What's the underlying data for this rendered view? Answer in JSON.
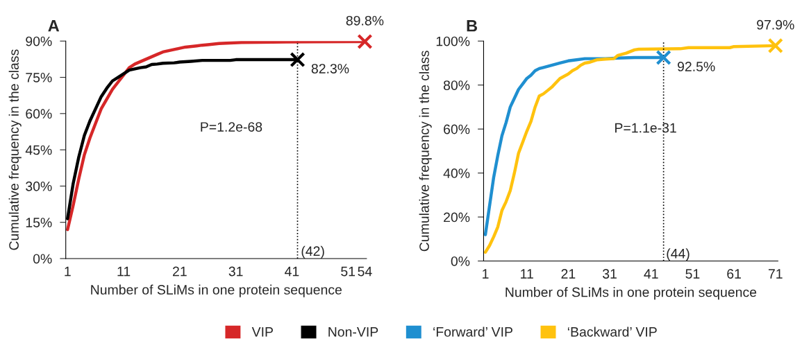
{
  "chart_data": [
    {
      "type": "line",
      "title": "A",
      "xlabel": "Number of SLiMs in one protein sequence",
      "ylabel": "Cumulative frequency in the class",
      "xlim": [
        0.68,
        54.3
      ],
      "xticks": [
        1,
        11,
        21,
        31,
        41,
        51,
        54
      ],
      "ylim": [
        0,
        90
      ],
      "yticks": [
        {
          "value": 0,
          "label": "0%"
        },
        {
          "value": 15,
          "label": "15%"
        },
        {
          "value": 30,
          "label": "30%"
        },
        {
          "value": 45,
          "label": "45%"
        },
        {
          "value": 60,
          "label": "60%"
        },
        {
          "value": 75,
          "label": "75%"
        },
        {
          "value": 90,
          "label": "90%"
        }
      ],
      "grid": false,
      "legend": "bottom",
      "series": [
        {
          "name": "VIP",
          "color": "#d62728",
          "x": [
            1,
            2,
            3,
            4,
            5,
            6,
            7,
            8,
            9,
            10,
            11,
            12,
            13,
            14,
            15,
            16,
            17,
            18,
            19,
            20,
            21,
            22,
            24,
            25,
            26,
            28,
            30,
            32,
            35,
            40,
            45,
            54
          ],
          "values": [
            12,
            22,
            33,
            43,
            50,
            56,
            62,
            66,
            70,
            73,
            76,
            79,
            80.5,
            81.5,
            82.5,
            83.5,
            84.5,
            85.5,
            86,
            86.5,
            87,
            87.5,
            88,
            88.3,
            88.5,
            89,
            89.2,
            89.4,
            89.5,
            89.6,
            89.7,
            89.8
          ]
        },
        {
          "name": "Non-VIP",
          "color": "#000000",
          "x": [
            1,
            2,
            3,
            4,
            5,
            6,
            7,
            8,
            9,
            10,
            11,
            12,
            13,
            14,
            15,
            16,
            17,
            18,
            20,
            21,
            23,
            25,
            30,
            31,
            42
          ],
          "values": [
            16.5,
            31,
            42,
            51,
            57,
            62,
            67,
            70.5,
            73.5,
            75,
            76.5,
            78,
            78.5,
            79,
            79.3,
            80.3,
            80.5,
            80.8,
            81,
            81.3,
            81.6,
            82,
            82,
            82.3,
            82.3
          ]
        },
        {
          "type": "scatter",
          "marker": "cross",
          "color": "#d62728",
          "x": [
            54
          ],
          "values": [
            89.8
          ]
        },
        {
          "type": "scatter",
          "marker": "cross",
          "color": "#000000",
          "x": [
            42
          ],
          "values": [
            82.3
          ]
        }
      ],
      "ref_lines": [
        {
          "axis": "x",
          "value": 42,
          "label": "(42)",
          "color": "#000000",
          "line_style": "dotted"
        }
      ],
      "annotations": [
        {
          "text": "89.8%",
          "x": 54,
          "y": 89.8
        },
        {
          "text": "82.3%",
          "x": 42,
          "y": 82.3
        },
        "P=1.2e-68"
      ]
    },
    {
      "type": "line",
      "title": "B",
      "xlabel": "Number of SLiMs in one protein sequence",
      "ylabel": "Cumulative frequency in the class",
      "xlim": [
        0.57,
        71.6
      ],
      "xticks": [
        1,
        11,
        21,
        31,
        41,
        51,
        61,
        71
      ],
      "ylim": [
        0,
        100
      ],
      "yticks": [
        {
          "value": 0,
          "label": "0%"
        },
        {
          "value": 20,
          "label": "20%"
        },
        {
          "value": 40,
          "label": "40%"
        },
        {
          "value": 60,
          "label": "60%"
        },
        {
          "value": 80,
          "label": "80%"
        },
        {
          "value": 100,
          "label": "100%"
        }
      ],
      "grid": false,
      "legend": "bottom",
      "series": [
        {
          "name": "‘Forward’ VIP",
          "color": "#1f8fd0",
          "x": [
            1,
            2,
            3,
            4,
            5,
            6,
            7,
            8,
            9,
            10,
            11,
            12,
            13,
            14,
            15,
            17,
            19,
            21,
            23,
            25,
            30,
            33,
            37,
            44
          ],
          "values": [
            12,
            25,
            38,
            48,
            57,
            63,
            70,
            74,
            78,
            80.5,
            83,
            84.5,
            86.5,
            87.5,
            88,
            89,
            90,
            91,
            91.5,
            92,
            92,
            92.3,
            92.5,
            92.5
          ]
        },
        {
          "name": "‘Backward’ VIP",
          "color": "#ffc20e",
          "x": [
            1,
            2,
            3,
            4,
            5,
            6,
            7,
            8,
            9,
            10,
            11,
            12,
            13,
            14,
            15,
            16,
            17,
            18,
            19,
            20,
            21,
            22,
            23,
            24,
            25,
            26,
            28,
            30,
            32,
            33,
            35,
            37,
            38,
            48,
            50,
            60,
            61,
            71
          ],
          "values": [
            4,
            7,
            11,
            15.5,
            23,
            27,
            32,
            40,
            49,
            54,
            59,
            63.5,
            70,
            75,
            76,
            77.5,
            79,
            81,
            83,
            84,
            85,
            86.5,
            87.5,
            89,
            90,
            90.3,
            91.5,
            91.8,
            92,
            93.5,
            94.5,
            96,
            96.3,
            96.5,
            97,
            97,
            97.5,
            97.9
          ]
        },
        {
          "type": "scatter",
          "marker": "cross",
          "color": "#1f8fd0",
          "x": [
            44
          ],
          "values": [
            92.5
          ]
        },
        {
          "type": "scatter",
          "marker": "cross",
          "color": "#ffc20e",
          "x": [
            71
          ],
          "values": [
            97.9
          ]
        }
      ],
      "ref_lines": [
        {
          "axis": "x",
          "value": 44,
          "label": "(44)",
          "color": "#000000",
          "line_style": "dotted"
        }
      ],
      "annotations": [
        {
          "text": "97.9%",
          "x": 71,
          "y": 97.9
        },
        {
          "text": "92.5%",
          "x": 44,
          "y": 92.5
        },
        "P=1.1e-31"
      ]
    }
  ]
}
